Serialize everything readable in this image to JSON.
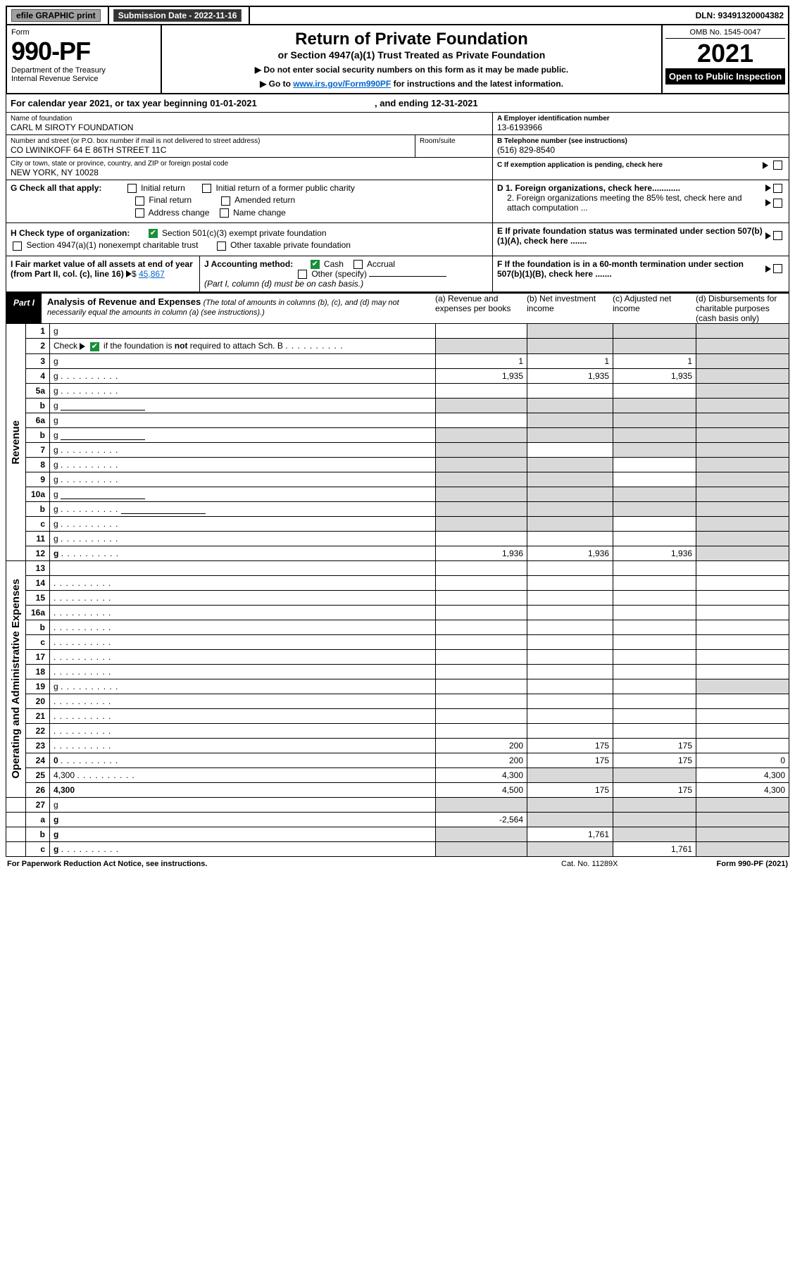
{
  "topbar": {
    "efile": "efile GRAPHIC print",
    "sub_label": "Submission Date - 2022-11-16",
    "dln": "DLN: 93491320004382"
  },
  "header": {
    "form_label": "Form",
    "form_number": "990-PF",
    "dept": "Department of the Treasury\nInternal Revenue Service",
    "title": "Return of Private Foundation",
    "subtitle": "or Section 4947(a)(1) Trust Treated as Private Foundation",
    "note1": "▶ Do not enter social security numbers on this form as it may be made public.",
    "note2_pre": "▶ Go to ",
    "note2_link": "www.irs.gov/Form990PF",
    "note2_post": " for instructions and the latest information.",
    "omb": "OMB No. 1545-0047",
    "year": "2021",
    "open": "Open to Public Inspection"
  },
  "calendar": {
    "text_a": "For calendar year 2021, or tax year beginning 01-01-2021",
    "text_b": ", and ending 12-31-2021"
  },
  "id": {
    "name_lbl": "Name of foundation",
    "name": "CARL M SIROTY FOUNDATION",
    "addr_lbl": "Number and street (or P.O. box number if mail is not delivered to street address)",
    "addr": "CO LWINIKOFF 64 E 86TH STREET 11C",
    "room_lbl": "Room/suite",
    "city_lbl": "City or town, state or province, country, and ZIP or foreign postal code",
    "city": "NEW YORK, NY  10028",
    "a_lbl": "A Employer identification number",
    "a_val": "13-6193966",
    "b_lbl": "B Telephone number (see instructions)",
    "b_val": "(516) 829-8540",
    "c_lbl": "C If exemption application is pending, check here"
  },
  "g": {
    "label": "G Check all that apply:",
    "o1": "Initial return",
    "o2": "Initial return of a former public charity",
    "o3": "Final return",
    "o4": "Amended return",
    "o5": "Address change",
    "o6": "Name change"
  },
  "h": {
    "label": "H Check type of organization:",
    "o1": "Section 501(c)(3) exempt private foundation",
    "o2": "Section 4947(a)(1) nonexempt charitable trust",
    "o3": "Other taxable private foundation"
  },
  "i": {
    "label": "I Fair market value of all assets at end of year (from Part II, col. (c), line 16)",
    "val": "45,867"
  },
  "j": {
    "label": "J Accounting method:",
    "o1": "Cash",
    "o2": "Accrual",
    "o3": "Other (specify)",
    "note": "(Part I, column (d) must be on cash basis.)"
  },
  "right_checks": {
    "d1": "D 1. Foreign organizations, check here............",
    "d2": "2. Foreign organizations meeting the 85% test, check here and attach computation ...",
    "e": "E  If private foundation status was terminated under section 507(b)(1)(A), check here .......",
    "f": "F  If the foundation is in a 60-month termination under section 507(b)(1)(B), check here ......."
  },
  "part1": {
    "label": "Part I",
    "title": "Analysis of Revenue and Expenses",
    "note": "(The total of amounts in columns (b), (c), and (d) may not necessarily equal the amounts in column (a) (see instructions).)",
    "cols": {
      "a": "(a) Revenue and expenses per books",
      "b": "(b) Net investment income",
      "c": "(c) Adjusted net income",
      "d": "(d) Disbursements for charitable purposes (cash basis only)"
    }
  },
  "sidelabels": {
    "rev": "Revenue",
    "exp": "Operating and Administrative Expenses"
  },
  "rows": [
    {
      "n": "1",
      "d": "g",
      "a": "",
      "b": "g",
      "c": "g"
    },
    {
      "n": "2",
      "d": "g",
      "dots": true,
      "a": "g",
      "b": "g",
      "c": "g"
    },
    {
      "n": "3",
      "d": "g",
      "a": "1",
      "b": "1",
      "c": "1"
    },
    {
      "n": "4",
      "d": "g",
      "dots": true,
      "a": "1,935",
      "b": "1,935",
      "c": "1,935"
    },
    {
      "n": "5a",
      "d": "g",
      "dots": true,
      "a": "",
      "b": "",
      "c": ""
    },
    {
      "n": "b",
      "d": "g",
      "inset": true,
      "a": "g",
      "b": "g",
      "c": "g"
    },
    {
      "n": "6a",
      "d": "g",
      "a": "",
      "b": "g",
      "c": "g"
    },
    {
      "n": "b",
      "d": "g",
      "inset": true,
      "a": "g",
      "b": "g",
      "c": "g"
    },
    {
      "n": "7",
      "d": "g",
      "dots": true,
      "a": "g",
      "b": "",
      "c": "g"
    },
    {
      "n": "8",
      "d": "g",
      "dots": true,
      "a": "g",
      "b": "g",
      "c": ""
    },
    {
      "n": "9",
      "d": "g",
      "dots": true,
      "a": "g",
      "b": "g",
      "c": ""
    },
    {
      "n": "10a",
      "d": "g",
      "inset": true,
      "a": "g",
      "b": "g",
      "c": "g"
    },
    {
      "n": "b",
      "d": "g",
      "dots": true,
      "inset": true,
      "a": "g",
      "b": "g",
      "c": "g"
    },
    {
      "n": "c",
      "d": "g",
      "dots": true,
      "a": "g",
      "b": "g",
      "c": ""
    },
    {
      "n": "11",
      "d": "g",
      "dots": true,
      "a": "",
      "b": "",
      "c": ""
    },
    {
      "n": "12",
      "d": "g",
      "bold": true,
      "dots": true,
      "a": "1,936",
      "b": "1,936",
      "c": "1,936"
    },
    {
      "n": "13",
      "d": "",
      "a": "",
      "b": "",
      "c": ""
    },
    {
      "n": "14",
      "d": "",
      "dots": true,
      "a": "",
      "b": "",
      "c": ""
    },
    {
      "n": "15",
      "d": "",
      "dots": true,
      "a": "",
      "b": "",
      "c": ""
    },
    {
      "n": "16a",
      "d": "",
      "dots": true,
      "a": "",
      "b": "",
      "c": ""
    },
    {
      "n": "b",
      "d": "",
      "dots": true,
      "a": "",
      "b": "",
      "c": ""
    },
    {
      "n": "c",
      "d": "",
      "dots": true,
      "a": "",
      "b": "",
      "c": ""
    },
    {
      "n": "17",
      "d": "",
      "dots": true,
      "a": "",
      "b": "",
      "c": ""
    },
    {
      "n": "18",
      "d": "",
      "dots": true,
      "a": "",
      "b": "",
      "c": ""
    },
    {
      "n": "19",
      "d": "g",
      "dots": true,
      "a": "",
      "b": "",
      "c": ""
    },
    {
      "n": "20",
      "d": "",
      "dots": true,
      "a": "",
      "b": "",
      "c": ""
    },
    {
      "n": "21",
      "d": "",
      "dots": true,
      "a": "",
      "b": "",
      "c": ""
    },
    {
      "n": "22",
      "d": "",
      "dots": true,
      "a": "",
      "b": "",
      "c": ""
    },
    {
      "n": "23",
      "d": "",
      "dots": true,
      "a": "200",
      "b": "175",
      "c": "175"
    },
    {
      "n": "24",
      "d": "0",
      "bold": true,
      "dots": true,
      "a": "200",
      "b": "175",
      "c": "175"
    },
    {
      "n": "25",
      "d": "4,300",
      "dots": true,
      "a": "4,300",
      "b": "g",
      "c": "g"
    },
    {
      "n": "26",
      "d": "4,300",
      "bold": true,
      "a": "4,500",
      "b": "175",
      "c": "175"
    },
    {
      "n": "27",
      "d": "g",
      "a": "g",
      "b": "g",
      "c": "g"
    },
    {
      "n": "a",
      "d": "g",
      "bold": true,
      "a": "-2,564",
      "b": "g",
      "c": "g"
    },
    {
      "n": "b",
      "d": "g",
      "bold": true,
      "a": "g",
      "b": "1,761",
      "c": "g"
    },
    {
      "n": "c",
      "d": "g",
      "bold": true,
      "dots": true,
      "a": "g",
      "b": "g",
      "c": "1,761"
    }
  ],
  "footer": {
    "left": "For Paperwork Reduction Act Notice, see instructions.",
    "cat": "Cat. No. 11289X",
    "form": "Form 990-PF (2021)"
  },
  "colors": {
    "link": "#0066cc",
    "grey": "#d9d9d9",
    "btn": "#9fa0a0",
    "check_green": "#1a8e3a"
  }
}
